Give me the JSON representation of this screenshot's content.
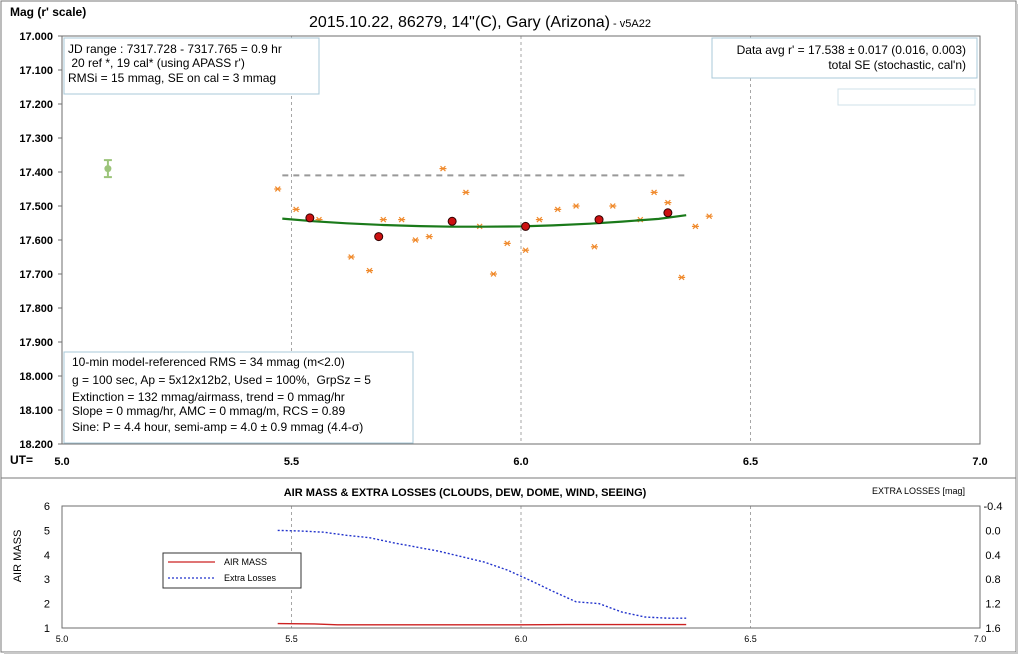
{
  "colors": {
    "grid": "#a6a6a6",
    "trend_line": "#1a7a1a",
    "ref_stars": "#f08a2c",
    "target_points": "#cc1111",
    "target_edge": "#300000",
    "dashed_level": "#999999",
    "single_point": "#9cc47a",
    "air_mass": "#cc2222",
    "extra_losses": "#2233cc",
    "box_border": "#a8c8d8"
  },
  "chart_data": [
    {
      "type": "scatter",
      "title": "2015.10.22, 86279, 14\"(C), Gary (Arizona)",
      "title_suffix": " - v5A22",
      "ylabel": "Mag (r' scale)",
      "xlabel": "UT=",
      "xlim": [
        5.0,
        7.0
      ],
      "ylim": [
        18.2,
        17.0
      ],
      "y_inverted": true,
      "x_ticks": [
        5.0,
        5.5,
        6.0,
        6.5,
        7.0
      ],
      "x_tick_labels": [
        "5.0",
        "5.5",
        "6.0",
        "6.5",
        "7.0"
      ],
      "y_ticks": [
        17.0,
        17.1,
        17.2,
        17.3,
        17.4,
        17.5,
        17.6,
        17.7,
        17.8,
        17.9,
        18.0,
        18.1,
        18.2
      ],
      "y_tick_labels": [
        "17.000",
        "17.100",
        "17.200",
        "17.300",
        "17.400",
        "17.500",
        "17.600",
        "17.700",
        "17.800",
        "17.900",
        "18.000",
        "18.100",
        "18.200"
      ],
      "grid_x": true,
      "info_box_top_left": [
        "JD range : 7317.728 - 7317.765 = 0.9 hr",
        " 20 ref *, 19 cal* (using APASS r')",
        "RMSi = 15 mmag, SE on cal = 3 mmag"
      ],
      "info_box_top_right": [
        "Data avg r' = 17.538 ± 0.017 (0.016, 0.003)",
        "total SE (stochastic, cal'n)"
      ],
      "info_box_bottom_left": [
        "10-min model-referenced RMS = 34 mmag (m<2.0)",
        "g = 100 sec, Ap = 5x12x12b2, Used = 100%,  GrpSz = 5",
        "Extinction = 132 mmag/airmass, trend = 0 mmag/hr",
        "Slope = 0 mmag/hr, AMC = 0 mmag/m, RCS = 0.89",
        "Sine: P = 4.4 hour, semi-amp = 4.0 ± 0.9 mmag (4.4-σ)"
      ],
      "series": [
        {
          "kind": "ref_stars",
          "x": [
            5.47,
            5.51,
            5.56,
            5.63,
            5.67,
            5.7,
            5.74,
            5.77,
            5.8,
            5.83,
            5.88,
            5.91,
            5.94,
            5.97,
            6.01,
            6.04,
            6.08,
            6.12,
            6.16,
            6.2,
            6.26,
            6.29,
            6.32,
            6.35,
            6.38,
            6.41
          ],
          "y": [
            17.45,
            17.51,
            17.54,
            17.65,
            17.69,
            17.54,
            17.54,
            17.6,
            17.59,
            17.39,
            17.46,
            17.56,
            17.7,
            17.61,
            17.63,
            17.54,
            17.51,
            17.5,
            17.62,
            17.5,
            17.54,
            17.46,
            17.49,
            17.71,
            17.56,
            17.53
          ]
        },
        {
          "kind": "target",
          "x": [
            5.54,
            5.69,
            5.85,
            6.01,
            6.17,
            6.32
          ],
          "y": [
            17.535,
            17.59,
            17.545,
            17.56,
            17.54,
            17.52
          ]
        },
        {
          "kind": "trend",
          "x": [
            5.48,
            5.55,
            5.62,
            5.7,
            5.78,
            5.85,
            5.92,
            6.0,
            6.07,
            6.15,
            6.22,
            6.3,
            6.36
          ],
          "y": [
            17.537,
            17.545,
            17.551,
            17.556,
            17.559,
            17.561,
            17.561,
            17.56,
            17.557,
            17.552,
            17.546,
            17.538,
            17.527
          ]
        },
        {
          "kind": "dashed_level",
          "x": [
            5.48,
            6.36
          ],
          "y": [
            17.41,
            17.41
          ]
        },
        {
          "kind": "single_point",
          "x": [
            5.1
          ],
          "y": [
            17.39
          ],
          "err": [
            0.025
          ]
        }
      ]
    },
    {
      "type": "line",
      "title": "AIR MASS & EXTRA LOSSES (CLOUDS, DEW, DOME, WIND, SEEING)",
      "ylabel": "AIR MASS",
      "y2label": "EXTRA LOSSES [mag]",
      "xlim": [
        5.0,
        7.0
      ],
      "ylim": [
        1,
        6
      ],
      "y2lim": [
        1.6,
        -0.4
      ],
      "x_ticks": [
        5.0,
        5.5,
        6.0,
        6.5,
        7.0
      ],
      "x_tick_labels": [
        "5.0",
        "5.5",
        "6.0",
        "6.5",
        "7.0"
      ],
      "y_ticks": [
        1,
        2,
        3,
        4,
        5,
        6
      ],
      "y_tick_labels": [
        "1",
        "2",
        "3",
        "4",
        "5",
        "6"
      ],
      "y2_ticks": [
        -0.4,
        0.0,
        0.4,
        0.8,
        1.2,
        1.6
      ],
      "y2_tick_labels": [
        "-0.4",
        "0.0",
        "0.4",
        "0.8",
        "1.2",
        "1.6"
      ],
      "grid_x": true,
      "legend": [
        "AIR MASS",
        "Extra Losses"
      ],
      "legend_position": "left-middle",
      "series": [
        {
          "name": "AIR MASS",
          "axis": "left",
          "x": [
            5.47,
            5.55,
            5.6,
            5.7,
            5.8,
            5.9,
            6.0,
            6.1,
            6.2,
            6.3,
            6.36
          ],
          "y": [
            1.18,
            1.17,
            1.13,
            1.13,
            1.13,
            1.13,
            1.13,
            1.14,
            1.14,
            1.14,
            1.14
          ]
        },
        {
          "name": "Extra Losses",
          "axis": "right",
          "x": [
            5.47,
            5.52,
            5.57,
            5.62,
            5.67,
            5.72,
            5.77,
            5.82,
            5.87,
            5.92,
            5.97,
            6.02,
            6.07,
            6.12,
            6.17,
            6.22,
            6.27,
            6.32,
            6.36
          ],
          "y": [
            0.0,
            0.01,
            0.03,
            0.08,
            0.12,
            0.2,
            0.27,
            0.34,
            0.43,
            0.52,
            0.65,
            0.82,
            1.0,
            1.17,
            1.2,
            1.34,
            1.42,
            1.44,
            1.44
          ]
        }
      ]
    }
  ]
}
